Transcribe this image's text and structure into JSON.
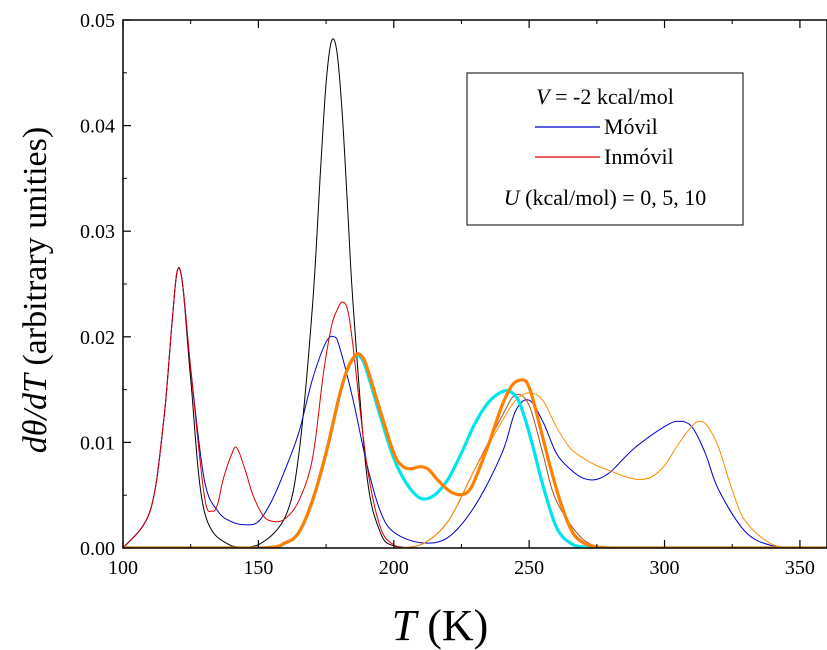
{
  "chart_data": {
    "type": "line",
    "xlabel": {
      "var": "T",
      "unit": " (K)"
    },
    "ylabel": {
      "prefix_italic": "dθ/dT",
      "rest": " (arbitrary unities)"
    },
    "xlim": [
      100,
      360
    ],
    "ylim": [
      0,
      0.05
    ],
    "xticks": [
      100,
      150,
      200,
      250,
      300,
      350
    ],
    "yticks": [
      0.0,
      0.01,
      0.02,
      0.03,
      0.04,
      0.05
    ],
    "ytick_labels": [
      "0.00",
      "0.01",
      "0.02",
      "0.03",
      "0.04",
      "0.05"
    ],
    "grid": false,
    "legend": {
      "placement": "top-right",
      "header": {
        "var": "V",
        "rest": " = -2 kcal/mol"
      },
      "entries": [
        {
          "label": "Móvil",
          "color": "#0000cc"
        },
        {
          "label": "Inmóvil",
          "color": "#dd0000"
        }
      ],
      "footer": {
        "var": "U",
        "rest": " (kcal/mol) = 0, 5, 10"
      }
    },
    "series": [
      {
        "color": "#000000",
        "width": 1,
        "x": [
          100,
          110,
          115,
          118,
          120,
          122,
          125,
          130,
          140,
          150,
          160,
          165,
          170,
          173,
          175,
          177,
          179,
          181,
          183,
          185,
          190,
          195,
          200,
          210,
          220,
          240,
          260,
          300,
          360
        ],
        "y": [
          0,
          0.0035,
          0.012,
          0.021,
          0.0262,
          0.025,
          0.016,
          0.0035,
          0.0002,
          0.0003,
          0.003,
          0.009,
          0.023,
          0.036,
          0.044,
          0.048,
          0.047,
          0.041,
          0.032,
          0.023,
          0.007,
          0.0015,
          0.0002,
          0,
          0,
          0,
          0,
          0,
          0
        ]
      },
      {
        "color": "#0000cc",
        "width": 1,
        "x": [
          100,
          110,
          115,
          118,
          120,
          122,
          125,
          130,
          135,
          140,
          145,
          150,
          155,
          160,
          165,
          170,
          175,
          178,
          180,
          185,
          190,
          195,
          200,
          210,
          220,
          230,
          240,
          245,
          250,
          255,
          260,
          265,
          270,
          275,
          280,
          285,
          290,
          300,
          305,
          310,
          315,
          320,
          330,
          340,
          350,
          360
        ],
        "y": [
          0,
          0.0035,
          0.012,
          0.021,
          0.0262,
          0.025,
          0.017,
          0.0065,
          0.0035,
          0.0025,
          0.0022,
          0.0025,
          0.0045,
          0.0075,
          0.011,
          0.016,
          0.0195,
          0.02,
          0.019,
          0.014,
          0.008,
          0.0035,
          0.0015,
          0.0005,
          0.001,
          0.004,
          0.009,
          0.013,
          0.014,
          0.012,
          0.009,
          0.0075,
          0.0066,
          0.0065,
          0.0072,
          0.0085,
          0.0097,
          0.0115,
          0.012,
          0.0115,
          0.009,
          0.0055,
          0.0015,
          0.0002,
          0,
          0
        ]
      },
      {
        "color": "#dd0000",
        "width": 1,
        "x": [
          100,
          110,
          115,
          118,
          120,
          122,
          125,
          130,
          133,
          135,
          137,
          140,
          142,
          145,
          148,
          152,
          156,
          160,
          165,
          170,
          174,
          177,
          179,
          181,
          183,
          185,
          190,
          195,
          200,
          205,
          210,
          215
        ],
        "y": [
          0,
          0.0035,
          0.012,
          0.021,
          0.0262,
          0.025,
          0.017,
          0.005,
          0.0035,
          0.0042,
          0.0065,
          0.0088,
          0.0095,
          0.0075,
          0.005,
          0.003,
          0.0025,
          0.0028,
          0.0045,
          0.0085,
          0.0165,
          0.021,
          0.0225,
          0.0233,
          0.0225,
          0.019,
          0.008,
          0.002,
          0.0003,
          0,
          0,
          0
        ]
      },
      {
        "color": "#a0522d",
        "width": 1,
        "x": [
          190,
          200,
          210,
          220,
          230,
          240,
          245,
          250,
          255,
          260,
          270,
          280,
          290,
          300
        ],
        "y": [
          0,
          0,
          0.0003,
          0.0025,
          0.0075,
          0.0125,
          0.0145,
          0.0135,
          0.009,
          0.0045,
          0.0008,
          0,
          0,
          0
        ]
      },
      {
        "color": "#ff8c00",
        "width": 1,
        "x": [
          200,
          210,
          220,
          230,
          240,
          245,
          250,
          255,
          260,
          265,
          270,
          275,
          280,
          285,
          290,
          295,
          300,
          305,
          310,
          313,
          316,
          320,
          325,
          330,
          340,
          350,
          360
        ],
        "y": [
          0,
          0.0003,
          0.0025,
          0.0075,
          0.012,
          0.014,
          0.0147,
          0.014,
          0.0115,
          0.0095,
          0.0085,
          0.0078,
          0.0073,
          0.0068,
          0.0065,
          0.0067,
          0.0078,
          0.0098,
          0.0115,
          0.012,
          0.0115,
          0.0095,
          0.0055,
          0.0025,
          0.0003,
          0,
          0
        ]
      },
      {
        "color": "#00e5ee",
        "width": 3.2,
        "x": [
          100,
          150,
          160,
          165,
          170,
          175,
          180,
          183,
          186,
          188,
          190,
          195,
          200,
          205,
          210,
          215,
          220,
          225,
          230,
          235,
          240,
          243,
          246,
          249,
          252,
          255,
          260,
          265,
          270,
          280,
          290,
          360
        ],
        "y": [
          0,
          0,
          0.0005,
          0.0015,
          0.0045,
          0.009,
          0.0145,
          0.017,
          0.0182,
          0.018,
          0.0168,
          0.0125,
          0.0085,
          0.006,
          0.0047,
          0.005,
          0.0065,
          0.009,
          0.0118,
          0.0138,
          0.0148,
          0.0148,
          0.014,
          0.0118,
          0.009,
          0.006,
          0.002,
          0.0005,
          0.0001,
          0,
          0,
          0
        ]
      },
      {
        "color": "#ff8000",
        "width": 3.2,
        "x": [
          100,
          150,
          160,
          165,
          170,
          175,
          180,
          183,
          186,
          188,
          190,
          195,
          200,
          203,
          206,
          210,
          213,
          216,
          220,
          223,
          226,
          228,
          230,
          235,
          240,
          244,
          248,
          250,
          252,
          255,
          258,
          262,
          266,
          270,
          275,
          280,
          290,
          360
        ],
        "y": [
          0,
          0,
          0.0005,
          0.0015,
          0.0045,
          0.009,
          0.0145,
          0.017,
          0.0183,
          0.0182,
          0.0172,
          0.013,
          0.009,
          0.0078,
          0.0075,
          0.0077,
          0.0074,
          0.0065,
          0.0055,
          0.0051,
          0.0051,
          0.0055,
          0.0065,
          0.0098,
          0.0135,
          0.0155,
          0.0159,
          0.0152,
          0.0135,
          0.0105,
          0.0075,
          0.004,
          0.0015,
          0.0005,
          0.0001,
          0,
          0,
          0
        ]
      }
    ]
  }
}
